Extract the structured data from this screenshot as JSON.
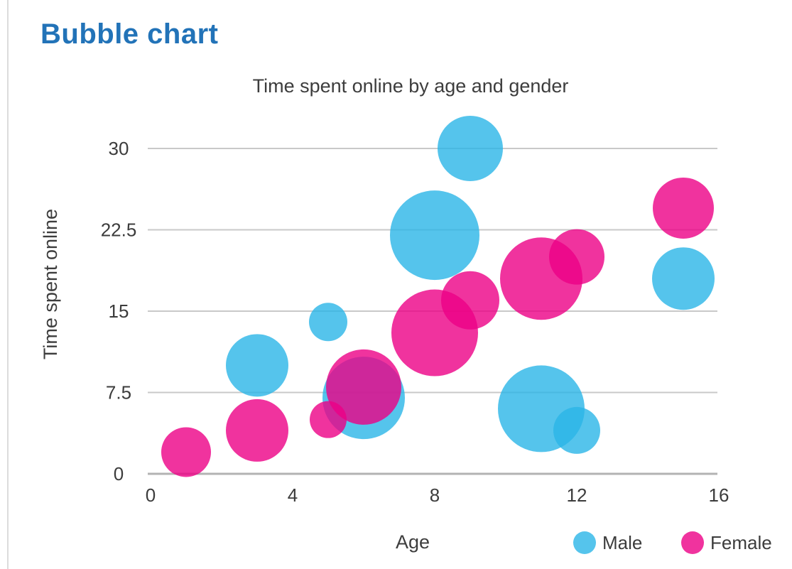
{
  "page": {
    "title": "Bubble chart",
    "title_color": "#2273b8"
  },
  "chart_data": {
    "type": "bubble",
    "title": "Time spent online by age and gender",
    "xlabel": "Age",
    "ylabel": "Time spent online",
    "xlim": [
      0,
      16
    ],
    "ylim": [
      0,
      30
    ],
    "x_ticks": [
      0,
      4,
      8,
      12,
      16
    ],
    "y_ticks": [
      0,
      7.5,
      15,
      22.5,
      30
    ],
    "grid": "horizontal-lines-only",
    "legend_position": "bottom-right",
    "colors": {
      "male": "#2bb5e7",
      "female": "#ec0086",
      "fill_opacity": 0.8,
      "gridline": "#c9c9c9",
      "axis_line": "#b3b3b3",
      "text": "#3c3c3c"
    },
    "series": [
      {
        "name": "Male",
        "color_key": "male",
        "points": [
          {
            "age": 3,
            "time": 10,
            "r": 44
          },
          {
            "age": 5,
            "time": 14,
            "r": 27
          },
          {
            "age": 6,
            "time": 7,
            "r": 58
          },
          {
            "age": 8,
            "time": 22,
            "r": 63
          },
          {
            "age": 9,
            "time": 30,
            "r": 46
          },
          {
            "age": 11,
            "time": 6,
            "r": 61
          },
          {
            "age": 12,
            "time": 4,
            "r": 33
          },
          {
            "age": 15,
            "time": 18,
            "r": 44
          }
        ]
      },
      {
        "name": "Female",
        "color_key": "female",
        "points": [
          {
            "age": 1,
            "time": 2,
            "r": 35
          },
          {
            "age": 3,
            "time": 4,
            "r": 44
          },
          {
            "age": 5,
            "time": 5,
            "r": 26
          },
          {
            "age": 6,
            "time": 8,
            "r": 53
          },
          {
            "age": 8,
            "time": 13,
            "r": 61
          },
          {
            "age": 9,
            "time": 16,
            "r": 41
          },
          {
            "age": 11,
            "time": 18,
            "r": 58
          },
          {
            "age": 12,
            "time": 20,
            "r": 39
          },
          {
            "age": 15,
            "time": 24.5,
            "r": 43
          }
        ]
      }
    ]
  }
}
